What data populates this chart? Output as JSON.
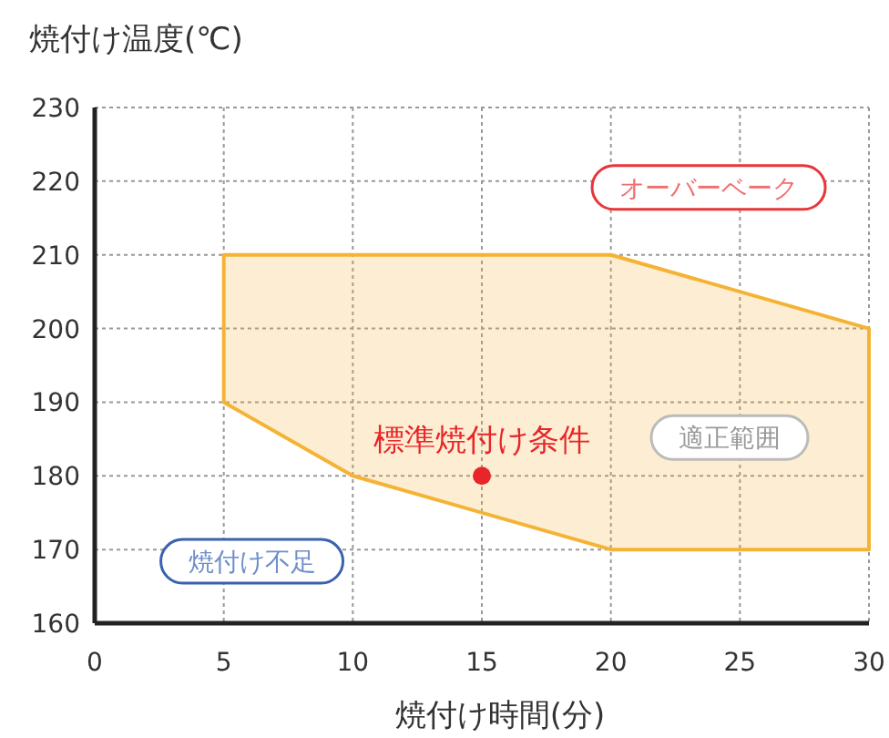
{
  "chart_data": {
    "type": "area",
    "xlabel": "焼付け時間(分)",
    "ylabel": "焼付け温度(℃)",
    "xlim": [
      0,
      30
    ],
    "xticks": [
      0,
      5,
      10,
      15,
      20,
      25,
      30
    ],
    "ylim": [
      160,
      230
    ],
    "yticks": [
      160,
      170,
      180,
      190,
      200,
      210,
      220,
      230
    ],
    "grid": true,
    "series": [
      {
        "color": "#f5b335",
        "x": [
          5,
          20,
          30,
          30,
          20,
          10,
          5,
          5
        ],
        "values": [
          210,
          210,
          200,
          170,
          170,
          180,
          190,
          210
        ]
      },
      {
        "type": "scatter",
        "color": "#e8262a",
        "x": [
          15
        ],
        "values": [
          180
        ]
      }
    ],
    "annotations": [
      {
        "text": "標準焼付け条件",
        "x": 15,
        "y": 180
      },
      "オーバーベーク",
      "適正範囲",
      "焼付け不足"
    ]
  }
}
